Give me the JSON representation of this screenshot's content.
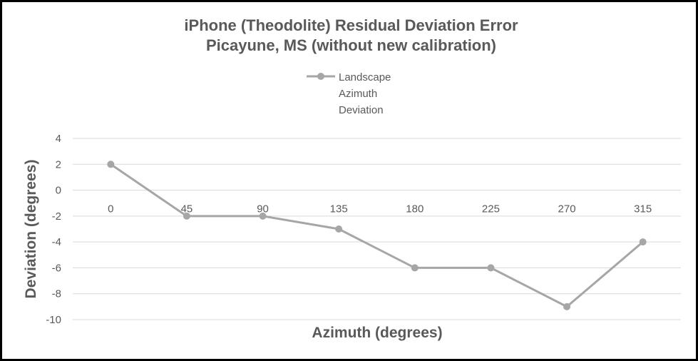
{
  "chart_data": {
    "type": "line",
    "title_lines": [
      "iPhone (Theodolite) Residual Deviation Error",
      "Picayune, MS (without new calibration)"
    ],
    "xlabel": "Azimuth (degrees)",
    "ylabel": "Deviation (degrees)",
    "categories": [
      "0",
      "45",
      "90",
      "135",
      "180",
      "225",
      "270",
      "315"
    ],
    "series": [
      {
        "name_lines": [
          "Landscape",
          "Azimuth",
          "Deviation"
        ],
        "values": [
          2,
          -2,
          -2,
          -3,
          -6,
          -6,
          -9,
          -4
        ]
      }
    ],
    "ylim": [
      -10,
      4
    ],
    "y_ticks": [
      "4",
      "2",
      "0",
      "-2",
      "-4",
      "-6",
      "-8",
      "-10"
    ],
    "grid": "horizontal",
    "legend_position": "top-center",
    "colors": {
      "series": "#a6a6a6",
      "grid": "#d9d9d9",
      "text": "#595959",
      "border": "#000000"
    }
  }
}
